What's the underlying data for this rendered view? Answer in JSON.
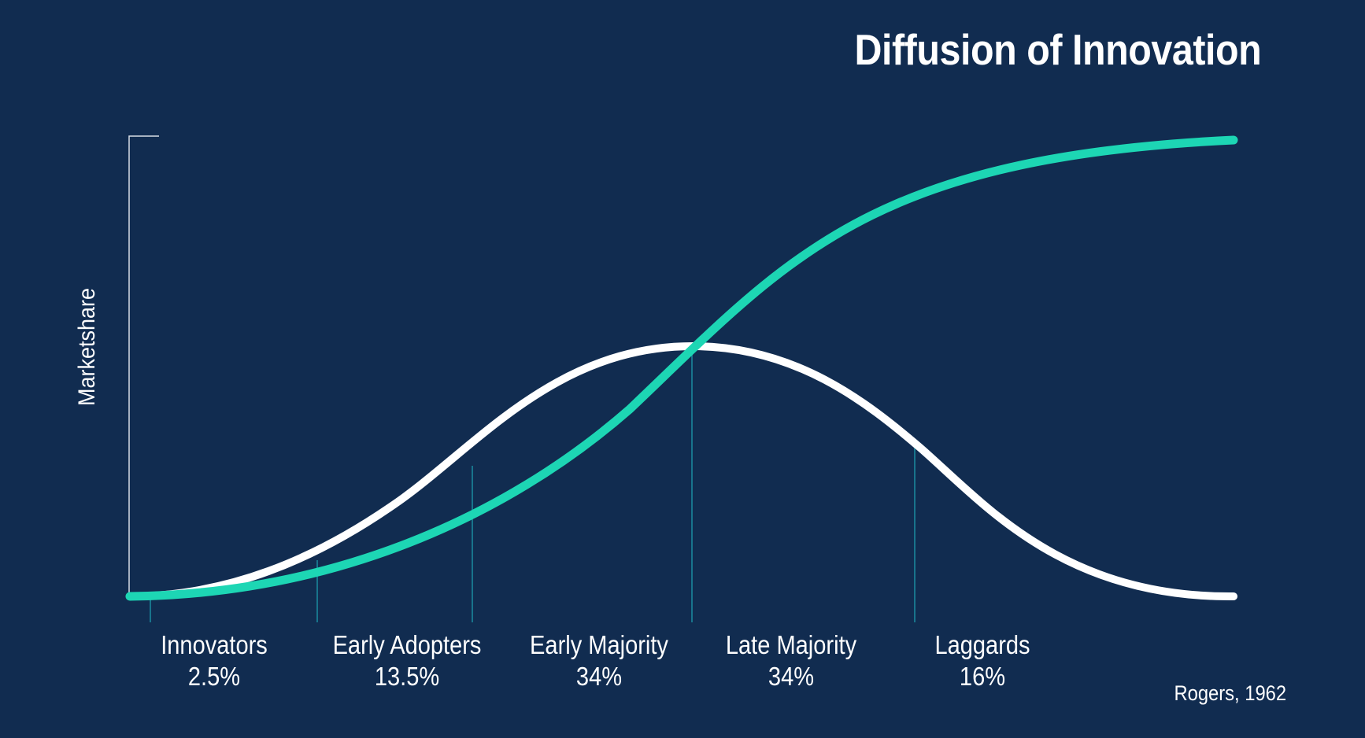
{
  "title": "Diffusion of Innovation",
  "y_axis_label": "Marketshare",
  "source": "Rogers, 1962",
  "colors": {
    "background": "#112c50",
    "bell_curve": "#ffffff",
    "s_curve": "#1dd6b4",
    "axis": "#d8dde6",
    "divider": "#1a8ca0",
    "text": "#ffffff"
  },
  "curves": {
    "bell": "adopters per segment (normal distribution)",
    "cumulative": "cumulative market share (S-curve)"
  },
  "segments": [
    {
      "name": "Innovators",
      "percent": "2.5%"
    },
    {
      "name": "Early Adopters",
      "percent": "13.5%"
    },
    {
      "name": "Early Majority",
      "percent": "34%"
    },
    {
      "name": "Late Majority",
      "percent": "34%"
    },
    {
      "name": "Laggards",
      "percent": "16%"
    }
  ]
}
